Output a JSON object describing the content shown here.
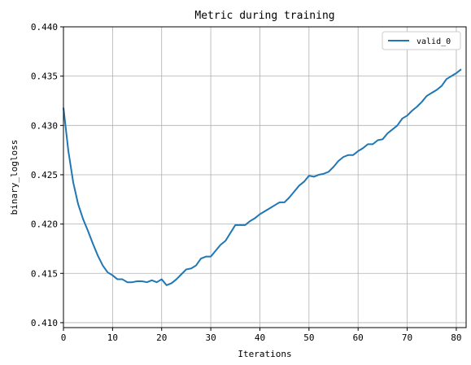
{
  "chart_data": {
    "type": "line",
    "title": "Metric during training",
    "xlabel": "Iterations",
    "ylabel": "binary_logloss",
    "xlim": [
      0,
      82
    ],
    "ylim": [
      0.4095,
      0.44
    ],
    "xticks": [
      "0",
      "10",
      "20",
      "30",
      "40",
      "50",
      "60",
      "70",
      "80"
    ],
    "yticks": [
      "0.410",
      "0.415",
      "0.420",
      "0.425",
      "0.430",
      "0.435",
      "0.440"
    ],
    "grid": true,
    "legend_position": "top-right",
    "series": [
      {
        "name": "valid_0",
        "color": "#1f77b4",
        "x": [
          0,
          1,
          2,
          3,
          4,
          5,
          6,
          7,
          8,
          9,
          10,
          11,
          12,
          13,
          14,
          15,
          16,
          17,
          18,
          19,
          20,
          21,
          22,
          23,
          24,
          25,
          26,
          27,
          28,
          29,
          30,
          31,
          32,
          33,
          34,
          35,
          36,
          37,
          38,
          39,
          40,
          41,
          42,
          43,
          44,
          45,
          46,
          47,
          48,
          49,
          50,
          51,
          52,
          53,
          54,
          55,
          56,
          57,
          58,
          59,
          60,
          61,
          62,
          63,
          64,
          65,
          66,
          67,
          68,
          69,
          70,
          71,
          72,
          73,
          74,
          75,
          76,
          77,
          78,
          79,
          80,
          81
        ],
        "y": [
          0.4318,
          0.4274,
          0.4242,
          0.422,
          0.4205,
          0.4193,
          0.418,
          0.4168,
          0.4158,
          0.4151,
          0.4148,
          0.4144,
          0.4144,
          0.4141,
          0.4141,
          0.4142,
          0.4142,
          0.4141,
          0.4143,
          0.4141,
          0.4144,
          0.4138,
          0.414,
          0.4144,
          0.4149,
          0.4154,
          0.4155,
          0.4158,
          0.4165,
          0.4167,
          0.4167,
          0.4173,
          0.4179,
          0.4183,
          0.4191,
          0.4199,
          0.4199,
          0.4199,
          0.4203,
          0.4206,
          0.421,
          0.4213,
          0.4216,
          0.4219,
          0.4222,
          0.4222,
          0.4227,
          0.4233,
          0.4239,
          0.4243,
          0.4249,
          0.4248,
          0.425,
          0.4251,
          0.4253,
          0.4258,
          0.4264,
          0.4268,
          0.427,
          0.427,
          0.4274,
          0.4277,
          0.4281,
          0.4281,
          0.4285,
          0.4286,
          0.4292,
          0.4296,
          0.43,
          0.4307,
          0.431,
          0.4315,
          0.4319,
          0.4324,
          0.433,
          0.4333,
          0.4336,
          0.434,
          0.4347,
          0.435,
          0.4353,
          0.4357
        ]
      }
    ]
  }
}
